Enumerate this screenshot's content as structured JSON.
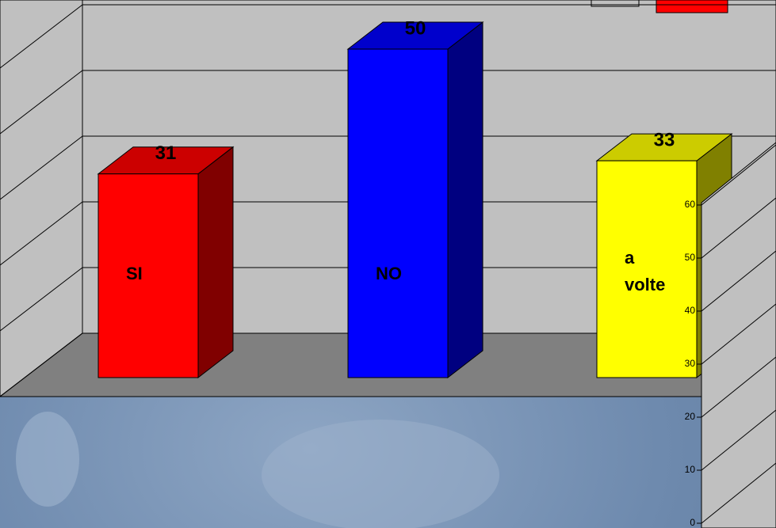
{
  "chart_data": {
    "type": "bar3d",
    "categories": [
      "SI",
      "NO",
      "a volte"
    ],
    "values": [
      31,
      50,
      33
    ],
    "colors": [
      "#ff0000",
      "#0000ff",
      "#ffff00"
    ],
    "ylim": [
      0,
      60
    ],
    "yticks": [
      0,
      10,
      20,
      30,
      40,
      50,
      60
    ],
    "grid": true
  }
}
